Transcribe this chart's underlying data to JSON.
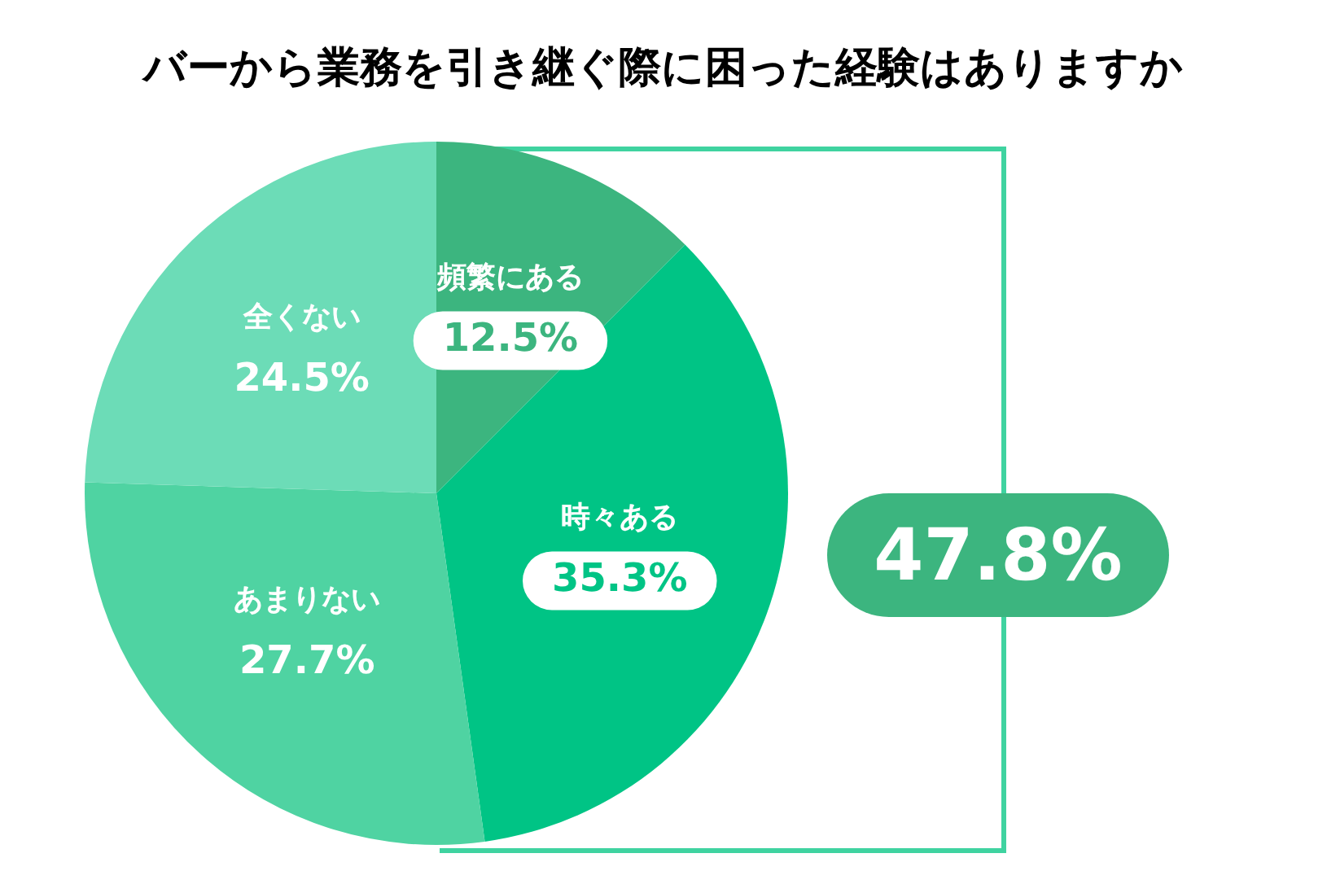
{
  "chart_data": {
    "type": "pie",
    "title": "バーから業務を引き継ぐ際に困った経験はありますか",
    "categories": [
      "頻繁にある",
      "時々ある",
      "あまりない",
      "全くない"
    ],
    "values": [
      12.5,
      35.3,
      27.7,
      24.5
    ],
    "value_labels": [
      "12.5%",
      "35.3%",
      "27.7%",
      "24.5%"
    ],
    "colors": [
      "#3cb57f",
      "#00c485",
      "#4fd3a2",
      "#6cdcb7"
    ],
    "annotations": [
      "47.8%"
    ],
    "legend": false
  }
}
